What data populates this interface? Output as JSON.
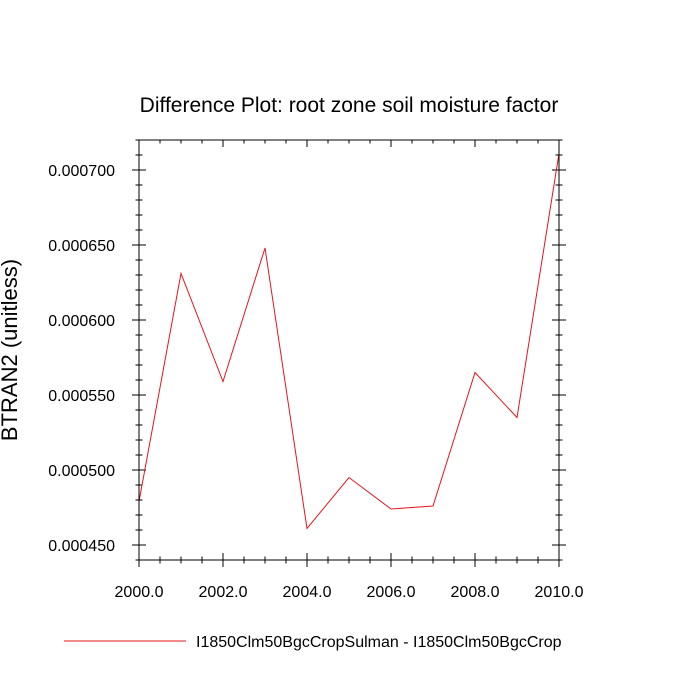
{
  "chart_data": {
    "type": "line",
    "title": "Difference Plot: root zone soil moisture factor",
    "xlabel": "",
    "ylabel": "BTRAN2  (unitless)",
    "xlim": [
      2000.0,
      2010.0
    ],
    "ylim": [
      0.00044,
      0.00072
    ],
    "x_ticks": [
      2000.0,
      2002.0,
      2004.0,
      2006.0,
      2008.0,
      2010.0
    ],
    "x_tick_labels": [
      "2000.0",
      "2002.0",
      "2004.0",
      "2006.0",
      "2008.0",
      "2010.0"
    ],
    "y_ticks": [
      0.00045,
      0.0005,
      0.00055,
      0.0006,
      0.00065,
      0.0007
    ],
    "y_tick_labels": [
      "0.000450",
      "0.000500",
      "0.000550",
      "0.000600",
      "0.000650",
      "0.000700"
    ],
    "grid": false,
    "legend_position": "bottom",
    "series": [
      {
        "name": "I1850Clm50BgcCropSulman - I1850Clm50BgcCrop",
        "color": "#e8141c",
        "x": [
          2000,
          2001,
          2002,
          2003,
          2004,
          2005,
          2006,
          2007,
          2008,
          2009,
          2010
        ],
        "y": [
          0.000479,
          0.000631,
          0.000559,
          0.000648,
          0.000461,
          0.000495,
          0.000474,
          0.000476,
          0.000565,
          0.000535,
          0.000711
        ]
      }
    ]
  }
}
